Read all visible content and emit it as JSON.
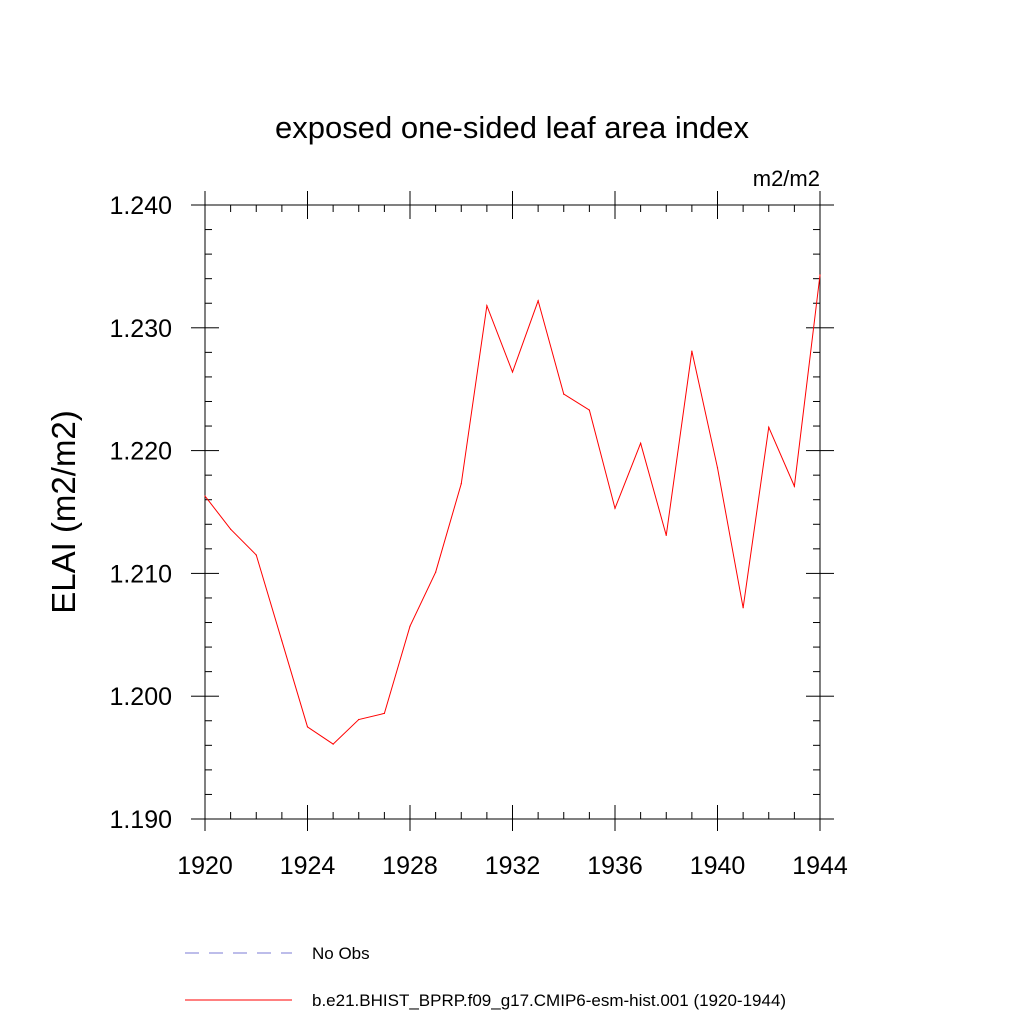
{
  "chart_data": {
    "type": "line",
    "title": "exposed one-sided leaf area index",
    "units": "m2/m2",
    "ylabel": "ELAI  (m2/m2)",
    "xlabel": "",
    "xlim": [
      1920,
      1944
    ],
    "ylim": [
      1.19,
      1.24
    ],
    "x_ticks": [
      "1920",
      "1924",
      "1928",
      "1932",
      "1936",
      "1940",
      "1944"
    ],
    "y_ticks": [
      "1.190",
      "1.200",
      "1.210",
      "1.220",
      "1.230",
      "1.240"
    ],
    "grid": false,
    "legend_position": "bottom",
    "series": [
      {
        "name": "No Obs",
        "color": "#7b7bd6",
        "style": "dashed",
        "values": []
      },
      {
        "name": "b.e21.BHIST_BPRP.f09_g17.CMIP6-esm-hist.001 (1920-1944)",
        "color": "#ff0000",
        "style": "solid",
        "x": [
          1920,
          1921,
          1922,
          1923,
          1924,
          1925,
          1926,
          1927,
          1928,
          1929,
          1930,
          1931,
          1932,
          1933,
          1934,
          1935,
          1936,
          1937,
          1938,
          1939,
          1940,
          1941,
          1942,
          1943,
          1944
        ],
        "values": [
          1.2163,
          1.2136,
          1.2115,
          1.2045,
          1.1975,
          1.1961,
          1.1981,
          1.1986,
          1.2057,
          1.2101,
          1.2173,
          1.2318,
          1.2264,
          1.2322,
          1.2246,
          1.2233,
          1.2153,
          1.2206,
          1.2131,
          1.2281,
          1.2186,
          1.2072,
          1.2219,
          1.2171,
          1.2343
        ]
      }
    ]
  }
}
